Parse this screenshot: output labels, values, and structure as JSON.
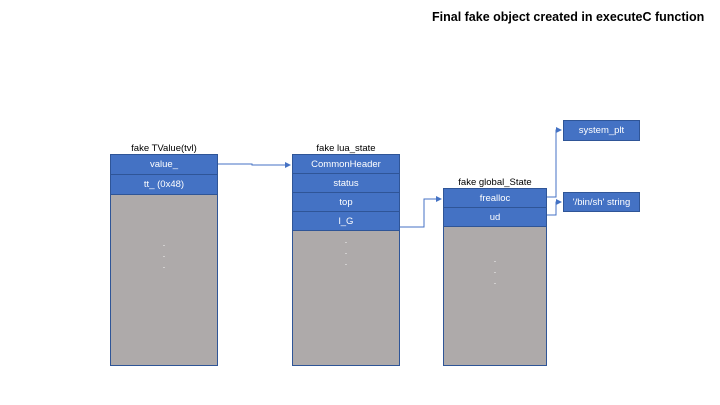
{
  "title": "Final fake object created in executeC function",
  "colors": {
    "field_fill": "#4472c4",
    "field_border": "#2f5597",
    "memory_fill": "#aeaaaa",
    "arrow": "#4472c4"
  },
  "structs": {
    "tvalue": {
      "label": "fake TValue(tvl)",
      "fields": [
        "value_",
        "tt_ (0x48)"
      ]
    },
    "lua_state": {
      "label": "fake lua_state",
      "fields": [
        "CommonHeader",
        "status",
        "top",
        "l_G"
      ]
    },
    "global_state": {
      "label": "fake global_State",
      "fields": [
        "frealloc",
        "ud"
      ]
    }
  },
  "targets": {
    "system_plt": "system_plt",
    "binsh": "'/bin/sh' string"
  },
  "edges": [
    {
      "from": "tvalue.value_",
      "to": "lua_state"
    },
    {
      "from": "lua_state.l_G",
      "to": "global_state"
    },
    {
      "from": "global_state.frealloc",
      "to": "system_plt"
    },
    {
      "from": "global_state.ud",
      "to": "binsh"
    }
  ]
}
